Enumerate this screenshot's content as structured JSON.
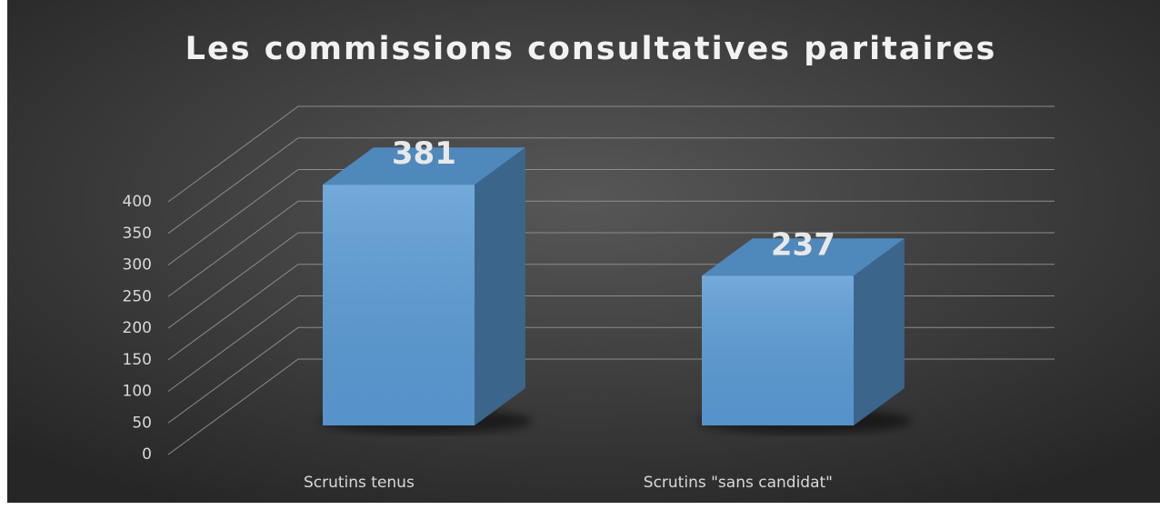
{
  "chart_data": {
    "type": "bar3d",
    "title": "Les commissions consultatives paritaires",
    "categories": [
      "Scrutins tenus",
      "Scrutins \"sans candidat\""
    ],
    "values": [
      381,
      237
    ],
    "color": "#5b9bd5",
    "ylim": [
      0,
      400
    ],
    "yticks": [
      0,
      50,
      100,
      150,
      200,
      250,
      300,
      350,
      400
    ],
    "grid": true
  }
}
